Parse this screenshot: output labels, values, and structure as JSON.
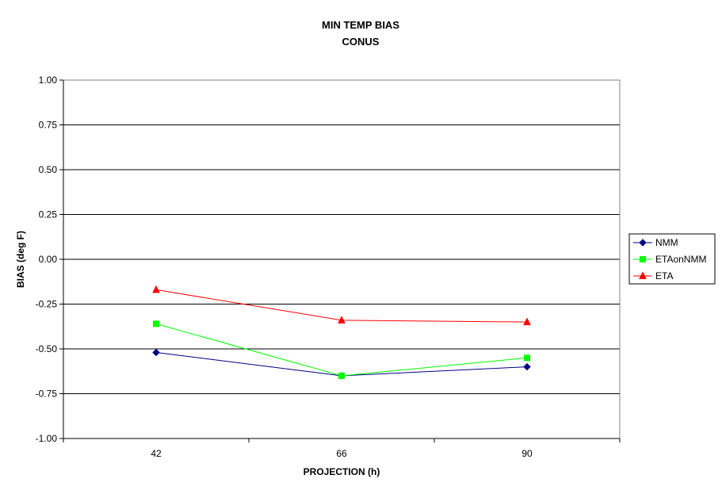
{
  "chart_data": {
    "type": "line",
    "title": "MIN TEMP BIAS",
    "subtitle": "CONUS",
    "xlabel": "PROJECTION (h)",
    "ylabel": "BIAS (deg F)",
    "categories": [
      "42",
      "66",
      "90"
    ],
    "ylim": [
      -1.0,
      1.0
    ],
    "yticks": [
      "1.00",
      "0.75",
      "0.50",
      "0.25",
      "0.00",
      "-0.25",
      "-0.50",
      "-0.75",
      "-1.00"
    ],
    "grid": true,
    "legend_position": "right",
    "series": [
      {
        "name": "NMM",
        "values": [
          -0.52,
          -0.65,
          -0.6
        ],
        "color": "#000080",
        "marker": "diamond"
      },
      {
        "name": "ETAonNMM",
        "values": [
          -0.36,
          -0.65,
          -0.55
        ],
        "color": "#00ff00",
        "marker": "square"
      },
      {
        "name": "ETA",
        "values": [
          -0.17,
          -0.34,
          -0.35
        ],
        "color": "#ff0000",
        "marker": "triangle"
      }
    ]
  }
}
